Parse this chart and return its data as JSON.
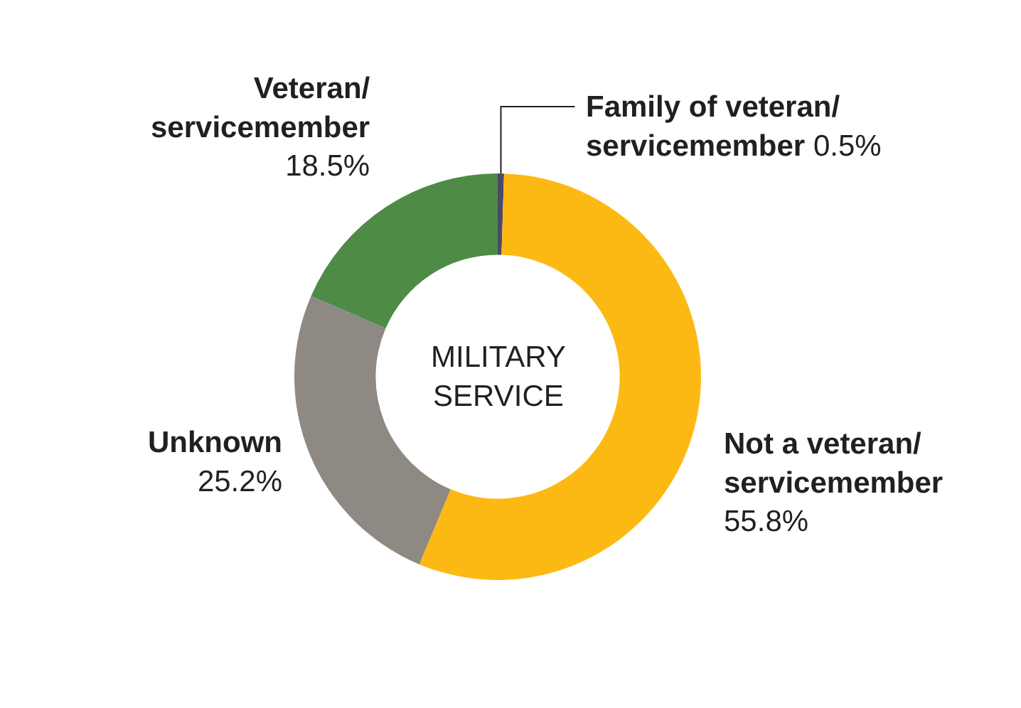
{
  "chart_data": {
    "type": "donut",
    "title": "MILITARY\nSERVICE",
    "categories": [
      "Family of veteran/\nservicemember",
      "Not a veteran/\nservicemember",
      "Unknown",
      "Veteran/\nservicemember"
    ],
    "values": [
      0.5,
      55.8,
      25.2,
      18.5
    ],
    "value_labels": [
      "0.5%",
      "55.8%",
      "25.2%",
      "18.5%"
    ],
    "colors": [
      "#4a4a68",
      "#fdb913",
      "#8f8983",
      "#4e8b46"
    ],
    "legend": false
  }
}
